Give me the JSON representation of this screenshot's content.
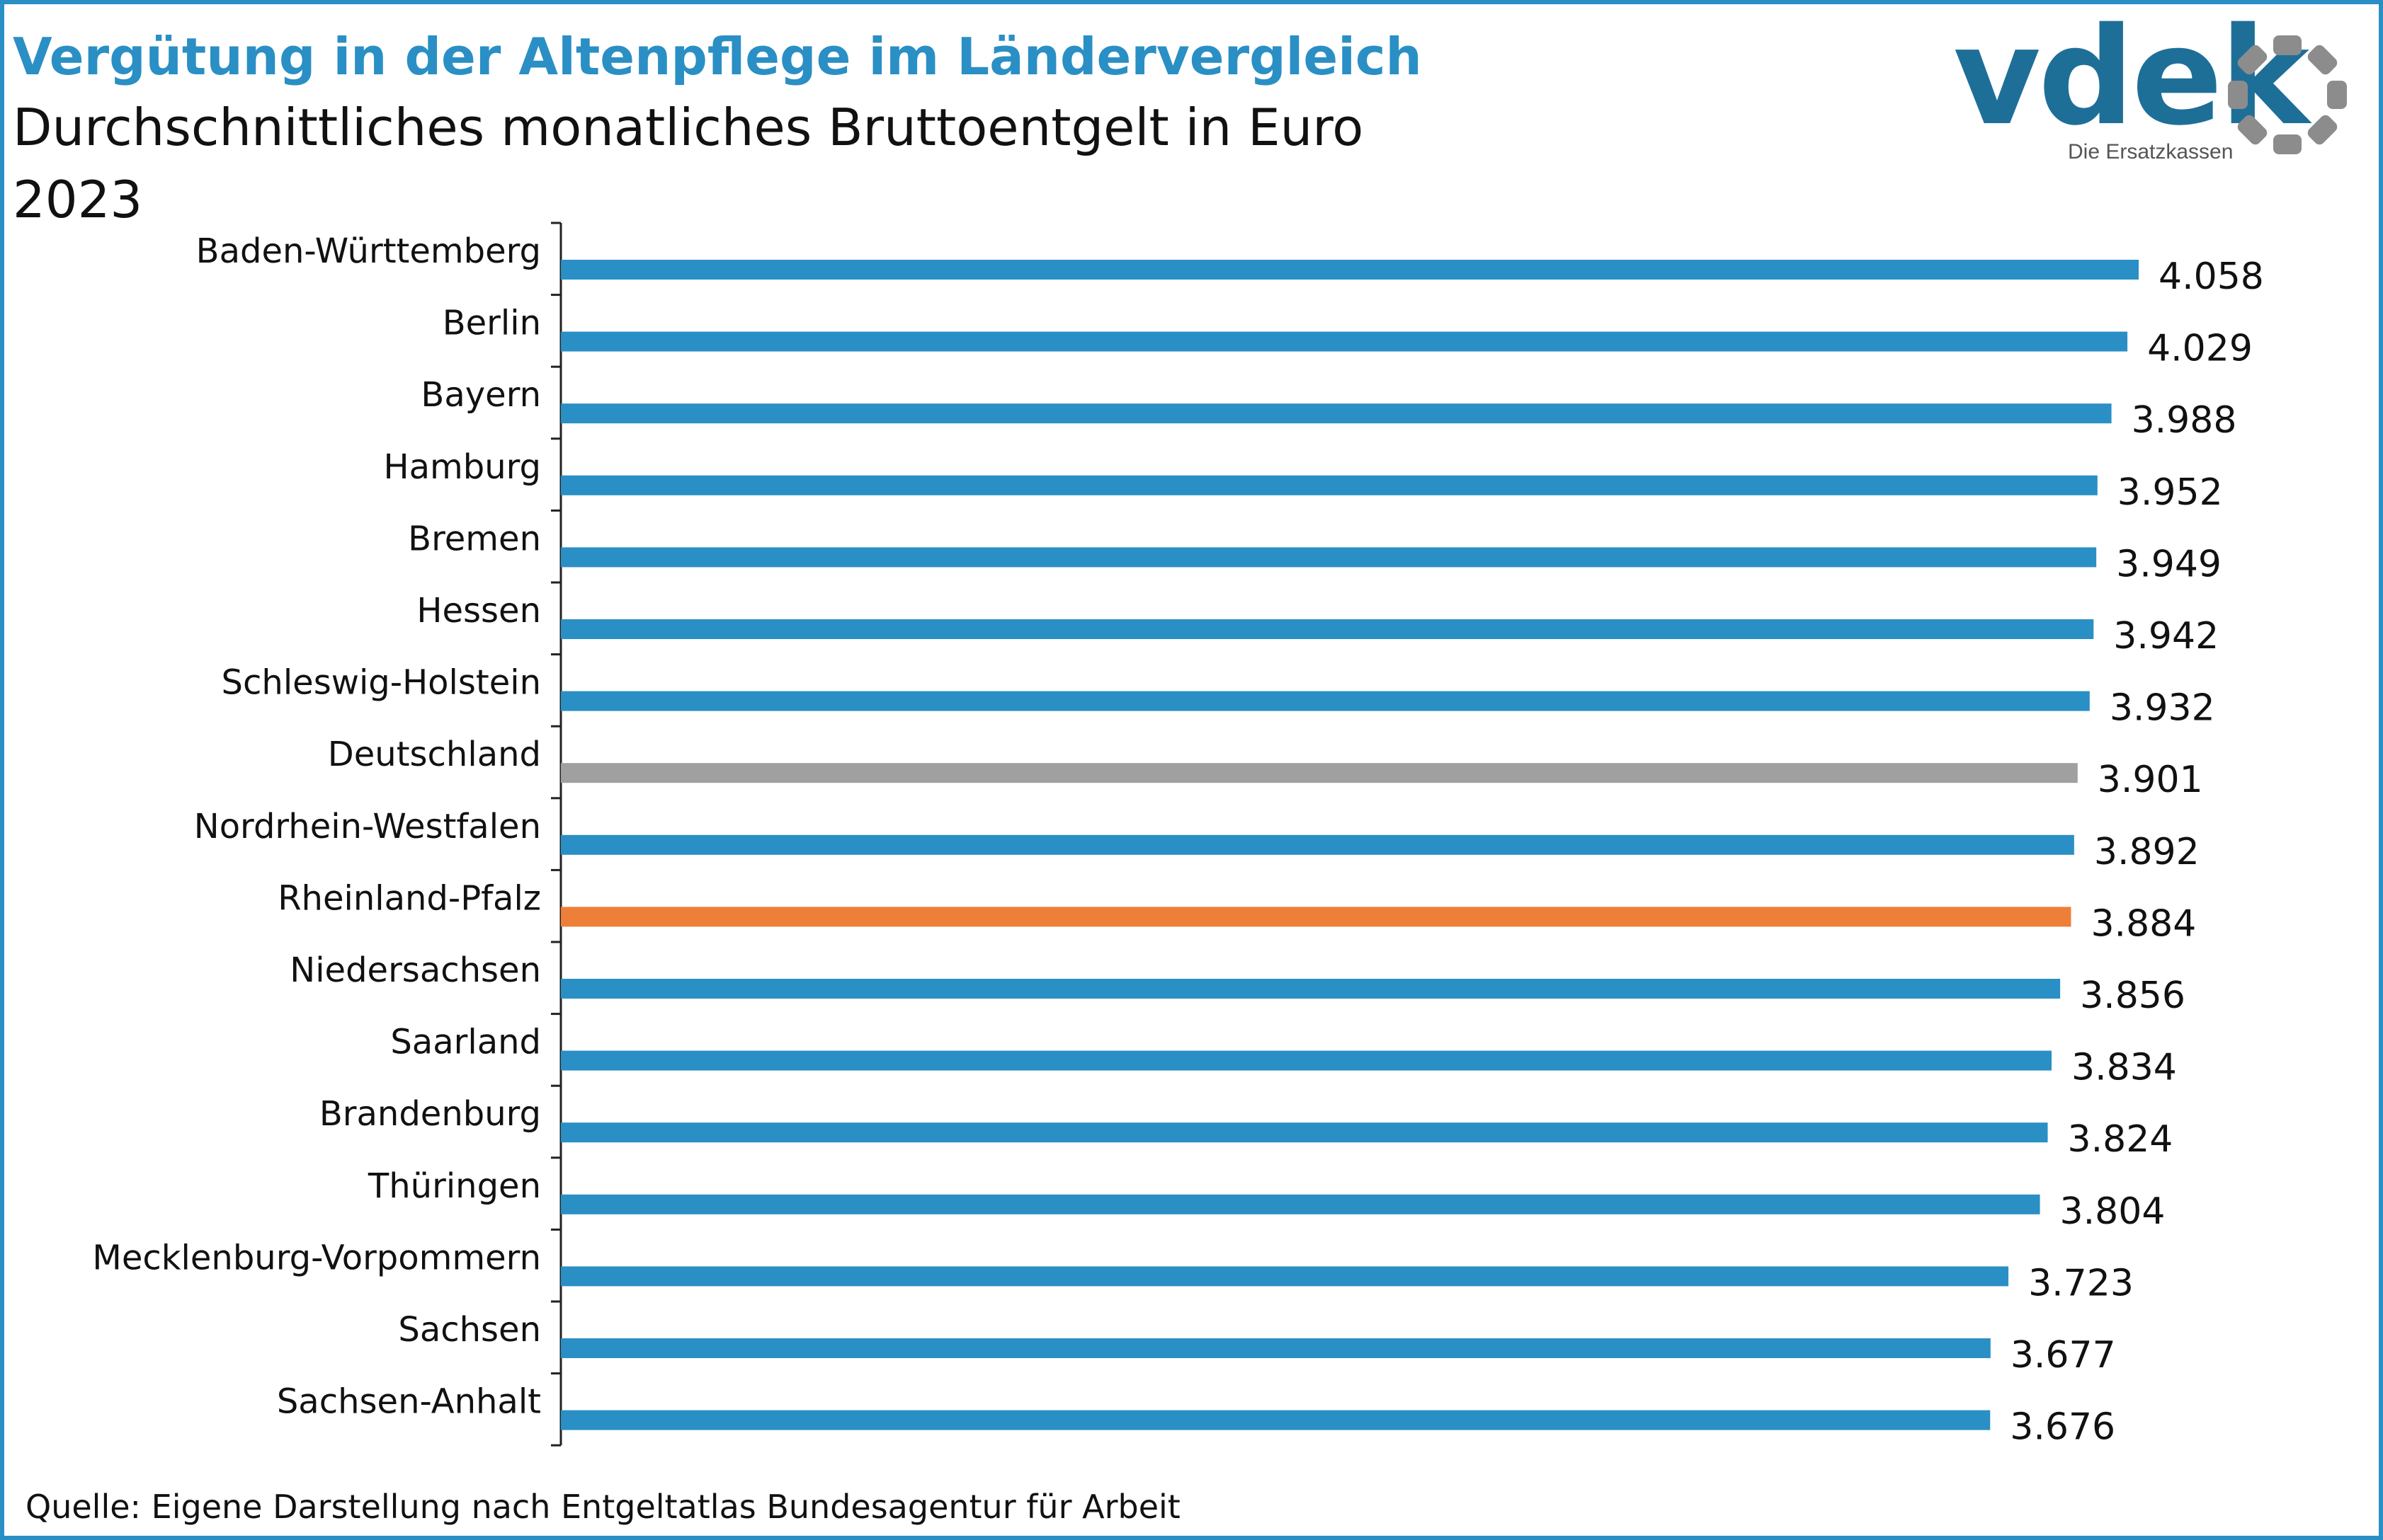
{
  "header": {
    "title": "Vergütung in der Altenpflege im Ländervergleich",
    "subtitle": "Durchschnittliches monatliches Bruttoentgelt in Euro",
    "year": "2023"
  },
  "logo": {
    "wordmark": "vdek",
    "tagline": "Die Ersatzkassen",
    "color": "#1e6f98",
    "ring_color": "#8c8c8c"
  },
  "colors": {
    "frame": "#2a8fc4",
    "bar_default": "#2a8fc4",
    "bar_national": "#a0a0a0",
    "bar_highlight": "#ee7f38"
  },
  "chart_data": {
    "type": "bar",
    "orientation": "horizontal",
    "categories": [
      "Baden-Württemberg",
      "Berlin",
      "Bayern",
      "Hamburg",
      "Bremen",
      "Hessen",
      "Schleswig-Holstein",
      "Deutschland",
      "Nordrhein-Westfalen",
      "Rheinland-Pfalz",
      "Niedersachsen",
      "Saarland",
      "Brandenburg",
      "Thüringen",
      "Mecklenburg-Vorpommern",
      "Sachsen",
      "Sachsen-Anhalt"
    ],
    "values": [
      4058,
      4029,
      3988,
      3952,
      3949,
      3942,
      3932,
      3901,
      3892,
      3884,
      3856,
      3834,
      3824,
      3804,
      3723,
      3677,
      3676
    ],
    "value_labels": [
      "4.058",
      "4.029",
      "3.988",
      "3.952",
      "3.949",
      "3.942",
      "3.932",
      "3.901",
      "3.892",
      "3.884",
      "3.856",
      "3.834",
      "3.824",
      "3.804",
      "3.723",
      "3.677",
      "3.676"
    ],
    "bar_colors": [
      "#2a8fc4",
      "#2a8fc4",
      "#2a8fc4",
      "#2a8fc4",
      "#2a8fc4",
      "#2a8fc4",
      "#2a8fc4",
      "#a0a0a0",
      "#2a8fc4",
      "#ee7f38",
      "#2a8fc4",
      "#2a8fc4",
      "#2a8fc4",
      "#2a8fc4",
      "#2a8fc4",
      "#2a8fc4",
      "#2a8fc4"
    ],
    "xlim": [
      0,
      4058
    ],
    "grid": false,
    "legend": "none"
  },
  "footer": {
    "source": "Quelle: Eigene Darstellung nach Entgeltatlas Bundesagentur für Arbeit"
  }
}
